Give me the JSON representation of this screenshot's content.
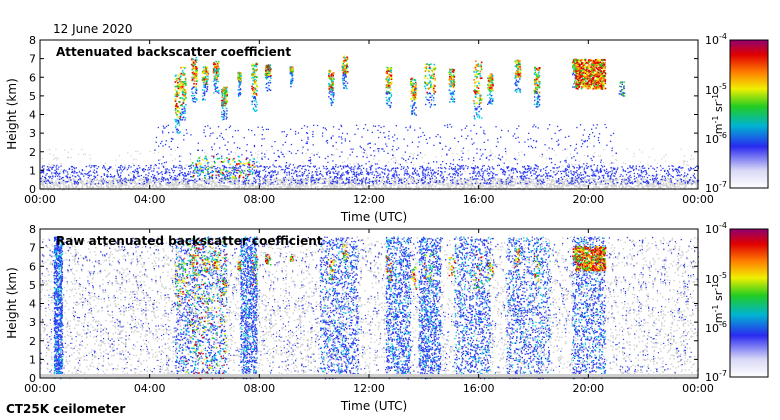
{
  "header": {
    "date": "12 June 2020"
  },
  "footer": {
    "instrument": "CT25K ceilometer"
  },
  "colorbar": {
    "ticks": [
      "10-4",
      "10-5",
      "10-6",
      "10-7"
    ],
    "unit_label": "m-1 sr-1",
    "stops": [
      "#ffffff",
      "#d8d8f6",
      "#2a2af0",
      "#00b4d2",
      "#22cc22",
      "#f0f000",
      "#ff8000",
      "#e00000",
      "#900070"
    ]
  },
  "colors": {
    "grey_noise": "#cfcfcf",
    "blue": "#2a3af0",
    "cyan": "#00c8e0",
    "green": "#22cc22",
    "yellow": "#f0f000",
    "orange": "#ff8000",
    "red": "#e00000"
  },
  "chart_data": [
    {
      "type": "heatmap",
      "title": "Attenuated backscatter coefficient",
      "xlabel": "Time (UTC)",
      "ylabel": "Height (km)",
      "xlim": [
        0,
        24
      ],
      "ylim": [
        0,
        8
      ],
      "x_ticks": [
        "00:00",
        "04:00",
        "08:00",
        "12:00",
        "16:00",
        "20:00",
        "00:00"
      ],
      "y_ticks": [
        "0",
        "1",
        "2",
        "3",
        "4",
        "5",
        "6",
        "7",
        "8"
      ],
      "color_scale": "log",
      "clim": [
        1e-07,
        0.0001
      ]
    },
    {
      "type": "heatmap",
      "title": "Raw attenuated backscatter coefficient",
      "xlabel": "Time (UTC)",
      "ylabel": "Height (km)",
      "xlim": [
        0,
        24
      ],
      "ylim": [
        0,
        8
      ],
      "x_ticks": [
        "00:00",
        "04:00",
        "08:00",
        "12:00",
        "16:00",
        "20:00",
        "00:00"
      ],
      "y_ticks": [
        "0",
        "1",
        "2",
        "3",
        "4",
        "5",
        "6",
        "7",
        "8"
      ],
      "color_scale": "log",
      "clim": [
        1e-07,
        0.0001
      ]
    }
  ]
}
